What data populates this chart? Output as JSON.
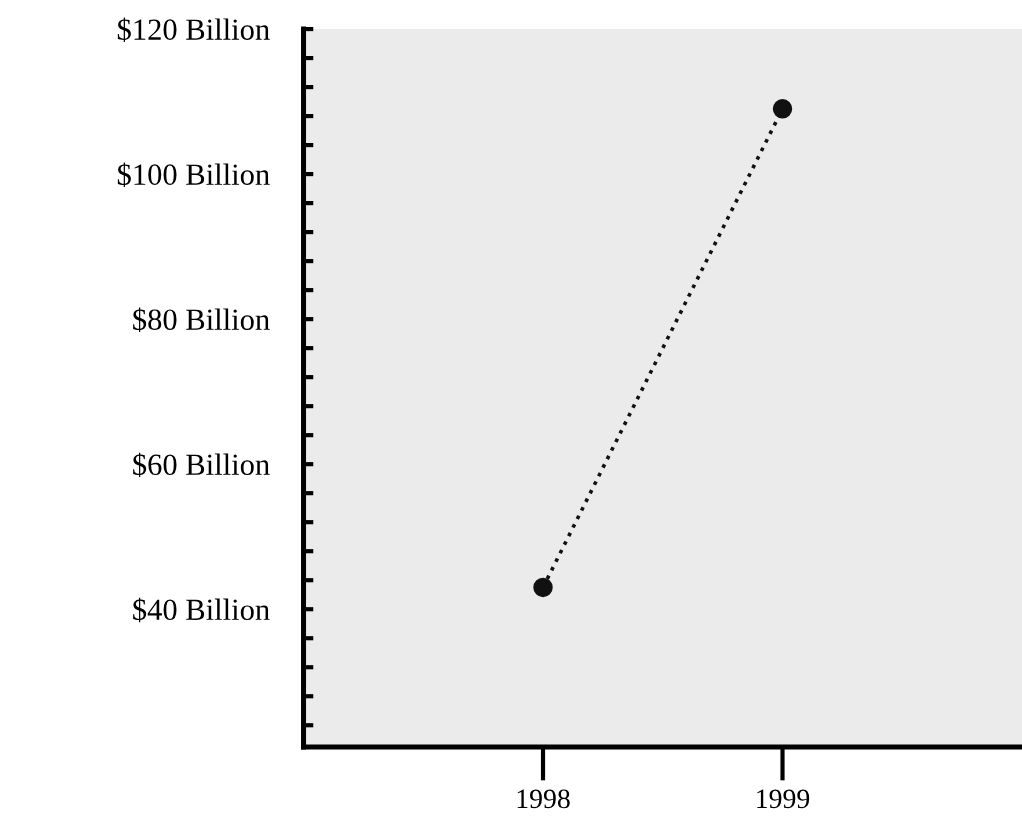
{
  "chart_data": {
    "type": "line",
    "categories": [
      "1998",
      "1999"
    ],
    "series": [
      {
        "color": "#111111",
        "values": [
          43,
          109
        ]
      }
    ],
    "marker": "circle",
    "line_style": "dotted",
    "grid": false,
    "legend": false,
    "ylim": [
      21,
      120
    ],
    "yticks": [
      {
        "value": 24,
        "label": null
      },
      {
        "value": 28,
        "label": null
      },
      {
        "value": 32,
        "label": null
      },
      {
        "value": 36,
        "label": null
      },
      {
        "value": 40,
        "label": "$40 Billion"
      },
      {
        "value": 44,
        "label": null
      },
      {
        "value": 48,
        "label": null
      },
      {
        "value": 52,
        "label": null
      },
      {
        "value": 56,
        "label": null
      },
      {
        "value": 60,
        "label": "$60 Billion"
      },
      {
        "value": 64,
        "label": null
      },
      {
        "value": 68,
        "label": null
      },
      {
        "value": 72,
        "label": null
      },
      {
        "value": 76,
        "label": null
      },
      {
        "value": 80,
        "label": "$80 Billion"
      },
      {
        "value": 84,
        "label": null
      },
      {
        "value": 88,
        "label": null
      },
      {
        "value": 92,
        "label": null
      },
      {
        "value": 96,
        "label": null
      },
      {
        "value": 100,
        "label": "$100 Billion"
      },
      {
        "value": 104,
        "label": null
      },
      {
        "value": 108,
        "label": null
      },
      {
        "value": 112,
        "label": null
      },
      {
        "value": 116,
        "label": null
      },
      {
        "value": 120,
        "label": "$120 Billion"
      }
    ]
  }
}
